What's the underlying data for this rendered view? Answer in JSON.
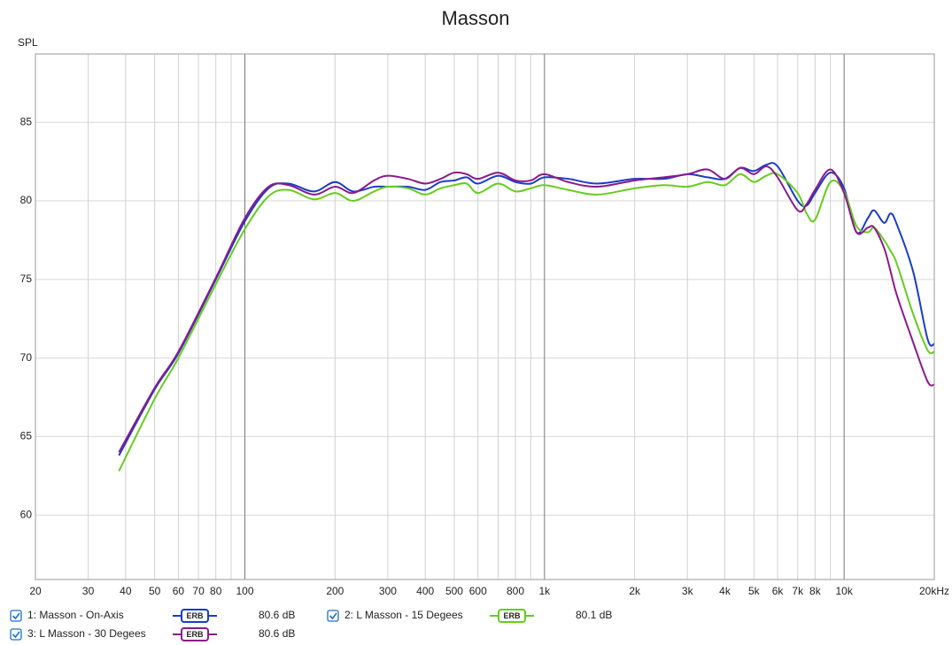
{
  "chart_data": {
    "type": "line",
    "title": "Masson",
    "y_label": "SPL",
    "x_scale": "log",
    "grid": true,
    "xlim": [
      20,
      20000
    ],
    "ylim": [
      55.9,
      89.35
    ],
    "xticks": [
      20,
      30,
      40,
      50,
      60,
      70,
      80,
      100,
      200,
      300,
      400,
      500,
      600,
      800,
      {
        "value": 1000,
        "label": "1k"
      },
      {
        "value": 2000,
        "label": "2k"
      },
      {
        "value": 3000,
        "label": "3k"
      },
      {
        "value": 4000,
        "label": "4k"
      },
      {
        "value": 5000,
        "label": "5k"
      },
      {
        "value": 6000,
        "label": "6k"
      },
      {
        "value": 7000,
        "label": "7k"
      },
      {
        "value": 8000,
        "label": "8k"
      },
      {
        "value": 10000,
        "label": "10k"
      },
      {
        "value": 20000,
        "label": "20kHz"
      }
    ],
    "x_unlabeled_grid": [
      90,
      700,
      900,
      9000
    ],
    "yticks": [
      60,
      65,
      70,
      75,
      80,
      85
    ],
    "x": [
      38,
      50,
      60,
      80,
      100,
      120,
      140,
      170,
      200,
      230,
      270,
      300,
      350,
      400,
      450,
      500,
      550,
      600,
      700,
      800,
      900,
      1000,
      1200,
      1500,
      2000,
      2500,
      3000,
      3500,
      4000,
      4500,
      5000,
      5500,
      6000,
      7000,
      7500,
      8000,
      9000,
      10000,
      11000,
      12000,
      12600,
      13600,
      14300,
      15000,
      17000,
      19000,
      20000
    ],
    "series": [
      {
        "name": "1: Masson - On-Axis",
        "color": "#1a3cc8",
        "smoothing": "ERB",
        "level": "80.6 dB",
        "values": [
          63.8,
          68.0,
          70.3,
          75.0,
          78.7,
          80.8,
          81.1,
          80.6,
          81.2,
          80.6,
          80.9,
          80.9,
          80.9,
          80.7,
          81.2,
          81.3,
          81.5,
          81.1,
          81.6,
          81.2,
          81.1,
          81.5,
          81.4,
          81.1,
          81.4,
          81.4,
          81.7,
          81.5,
          81.4,
          82.1,
          81.9,
          82.3,
          82.2,
          80.0,
          79.7,
          80.5,
          81.8,
          80.8,
          78.0,
          78.9,
          79.4,
          78.6,
          79.2,
          78.5,
          75.5,
          71.2,
          70.9
        ]
      },
      {
        "name": "2: L Masson - 15 Degees",
        "color": "#66cc1e",
        "smoothing": "ERB",
        "level": "80.1 dB",
        "values": [
          62.8,
          67.4,
          70.0,
          74.7,
          78.2,
          80.3,
          80.7,
          80.1,
          80.5,
          80.0,
          80.6,
          80.9,
          80.8,
          80.4,
          80.8,
          81.0,
          81.1,
          80.5,
          81.1,
          80.6,
          80.8,
          81.0,
          80.7,
          80.4,
          80.8,
          81.0,
          80.9,
          81.2,
          81.0,
          81.7,
          81.2,
          81.6,
          81.7,
          80.5,
          79.2,
          78.8,
          81.2,
          80.6,
          78.4,
          78.0,
          78.3,
          77.5,
          76.8,
          76.0,
          72.8,
          70.5,
          70.4
        ]
      },
      {
        "name": "3: L Masson - 30 Degees",
        "color": "#8b1a8b",
        "smoothing": "ERB",
        "level": "80.6 dB",
        "values": [
          64.0,
          68.1,
          70.4,
          75.1,
          78.9,
          80.9,
          81.0,
          80.4,
          80.9,
          80.5,
          81.3,
          81.6,
          81.4,
          81.1,
          81.4,
          81.8,
          81.7,
          81.4,
          81.8,
          81.3,
          81.3,
          81.7,
          81.2,
          80.9,
          81.3,
          81.5,
          81.7,
          82.0,
          81.4,
          82.1,
          81.7,
          82.2,
          81.5,
          79.4,
          79.8,
          80.7,
          82.0,
          80.5,
          78.0,
          78.3,
          78.3,
          77.0,
          75.5,
          74.0,
          71.0,
          68.5,
          68.3
        ]
      }
    ]
  }
}
